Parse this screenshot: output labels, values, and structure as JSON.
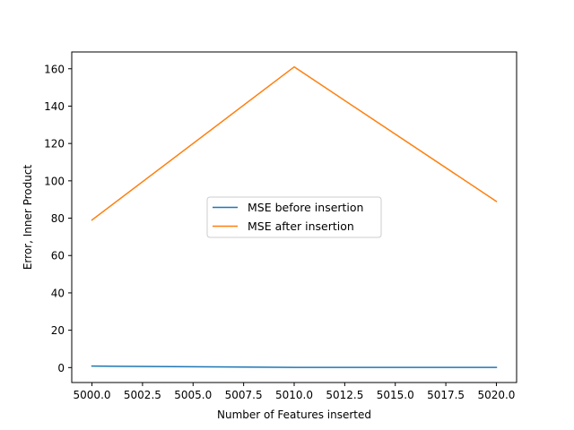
{
  "chart_data": {
    "type": "line",
    "title": "",
    "xlabel": "Number of Features inserted",
    "ylabel": "Error, Inner Product",
    "x": [
      5000,
      5010,
      5020
    ],
    "xlim": [
      4999,
      5021
    ],
    "ylim": [
      -8,
      169
    ],
    "xticks": [
      5000.0,
      5002.5,
      5005.0,
      5007.5,
      5010.0,
      5012.5,
      5015.0,
      5017.5,
      5020.0
    ],
    "xtick_labels": [
      "5000.0",
      "5002.5",
      "5005.0",
      "5007.5",
      "5010.0",
      "5012.5",
      "5015.0",
      "5017.5",
      "5020.0"
    ],
    "yticks": [
      0,
      20,
      40,
      60,
      80,
      100,
      120,
      140,
      160
    ],
    "ytick_labels": [
      "0",
      "20",
      "40",
      "60",
      "80",
      "100",
      "120",
      "140",
      "160"
    ],
    "grid": false,
    "legend_position": "center",
    "series": [
      {
        "name": "MSE before insertion",
        "values": [
          0.8,
          0.1,
          0.1
        ],
        "color": "#1f77b4"
      },
      {
        "name": "MSE after insertion",
        "values": [
          79,
          161,
          89
        ],
        "color": "#ff7f0e"
      }
    ]
  }
}
